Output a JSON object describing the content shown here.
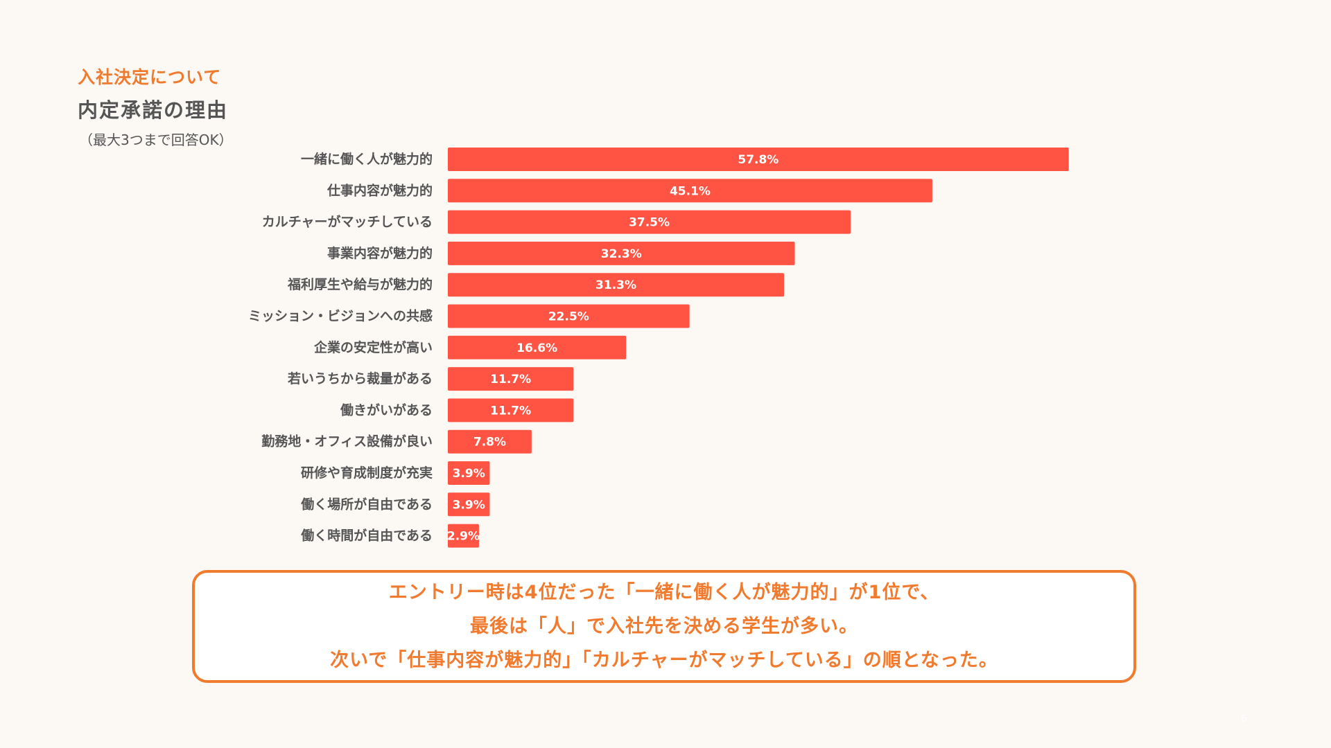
{
  "header": {
    "section_label": "入社決定について",
    "title": "内定承諾の理由",
    "note": "（最大3つまで回答OK）"
  },
  "chart_data": {
    "type": "bar",
    "orientation": "horizontal",
    "categories": [
      "一緒に働く人が魅力的",
      "仕事内容が魅力的",
      "カルチャーがマッチしている",
      "事業内容が魅力的",
      "福利厚生や給与が魅力的",
      "ミッション・ビジョンへの共感",
      "企業の安定性が高い",
      "若いうちから裁量がある",
      "働きがいがある",
      "勤務地・オフィス設備が良い",
      "研修や育成制度が充実",
      "働く場所が自由である",
      "働く時間が自由である"
    ],
    "values": [
      57.8,
      45.1,
      37.5,
      32.3,
      31.3,
      22.5,
      16.6,
      11.7,
      11.7,
      7.8,
      3.9,
      3.9,
      2.9
    ],
    "value_labels": [
      "57.8%",
      "45.1%",
      "37.5%",
      "32.3%",
      "31.3%",
      "22.5%",
      "16.6%",
      "11.7%",
      "11.7%",
      "7.8%",
      "3.9%",
      "3.9%",
      "2.9%"
    ],
    "unit": "%",
    "bar_color": "#ff5443",
    "grid": false,
    "legend": "none"
  },
  "callout": {
    "lines": [
      "エントリー時は4位だった「一緒に働く人が魅力的」が1位で、",
      "最後は「人」で入社先を決める学生が多い。",
      "次いで「仕事内容が魅力的」「カルチャーがマッチしている」の順となった。"
    ],
    "color": "#f07a2e"
  },
  "page_number": "6"
}
